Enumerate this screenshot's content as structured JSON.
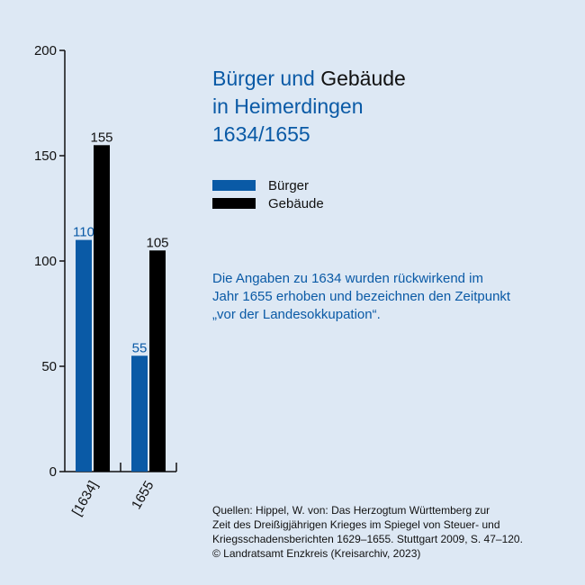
{
  "title": {
    "part1": "Bürger und",
    "part2": "Gebäude",
    "line2": "in Heimerdingen",
    "line3": "1634/1655"
  },
  "note": {
    "line1": "Die Angaben zu 1634 wurden rückwirkend im",
    "line2": "Jahr 1655 erhoben und bezeichnen den Zeitpunkt",
    "line3": "„vor der Landesokkupation“."
  },
  "source": {
    "line1": "Quellen: Hippel, W. von: Das Herzogtum Württemberg zur",
    "line2": "Zeit des Dreißigjährigen Krieges im Spiegel von Steuer- und",
    "line3": "Kriegsschadensberichten 1629–1655. Stuttgart 2009, S. 47–120.",
    "line4": "© Landratsamt Enzkreis (Kreisarchiv, 2023)"
  },
  "chart_data": {
    "type": "bar",
    "categories": [
      "[1634]",
      "1655"
    ],
    "series": [
      {
        "name": "Bürger",
        "values": [
          110,
          55
        ],
        "color": "#0a5aa6",
        "label_color": "#0a5aa6"
      },
      {
        "name": "Gebäude",
        "values": [
          155,
          105
        ],
        "color": "#000000",
        "label_color": "#111111"
      }
    ],
    "ylim": [
      0,
      200
    ],
    "yticks": [
      0,
      50,
      100,
      150,
      200
    ],
    "grid": false,
    "legend_position": "right"
  }
}
